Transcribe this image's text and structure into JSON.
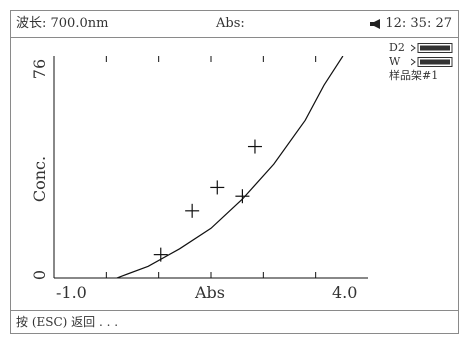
{
  "header": {
    "wavelength": "波长: 700.0nm",
    "abs": "Abs:",
    "time": "12: 35: 27"
  },
  "side_panel": {
    "lamp1": "D2",
    "lamp2": "W",
    "holder": "样品架#1"
  },
  "footer": {
    "hint": "按 (ESC) 返回 . . ."
  },
  "icons": [
    "speaker-icon",
    "lamp-status-icon"
  ],
  "chart_data": {
    "type": "scatter",
    "xlabel": "Abs",
    "ylabel": "Conc.",
    "xlim": [
      -1.0,
      4.0
    ],
    "ylim": [
      0,
      76
    ],
    "x_tick_labels": [
      "-1.0",
      "4.0"
    ],
    "y_tick_labels": [
      "0",
      "76"
    ],
    "points": [
      {
        "x": 0.7,
        "y": 8
      },
      {
        "x": 1.2,
        "y": 23
      },
      {
        "x": 1.6,
        "y": 31
      },
      {
        "x": 2.0,
        "y": 28
      },
      {
        "x": 2.2,
        "y": 45
      }
    ],
    "fit_curve": [
      {
        "x": 0.0,
        "y": 0
      },
      {
        "x": 0.5,
        "y": 4
      },
      {
        "x": 1.0,
        "y": 10
      },
      {
        "x": 1.5,
        "y": 17
      },
      {
        "x": 2.0,
        "y": 27
      },
      {
        "x": 2.5,
        "y": 39
      },
      {
        "x": 3.0,
        "y": 54
      },
      {
        "x": 3.3,
        "y": 66
      },
      {
        "x": 3.6,
        "y": 76
      }
    ]
  }
}
